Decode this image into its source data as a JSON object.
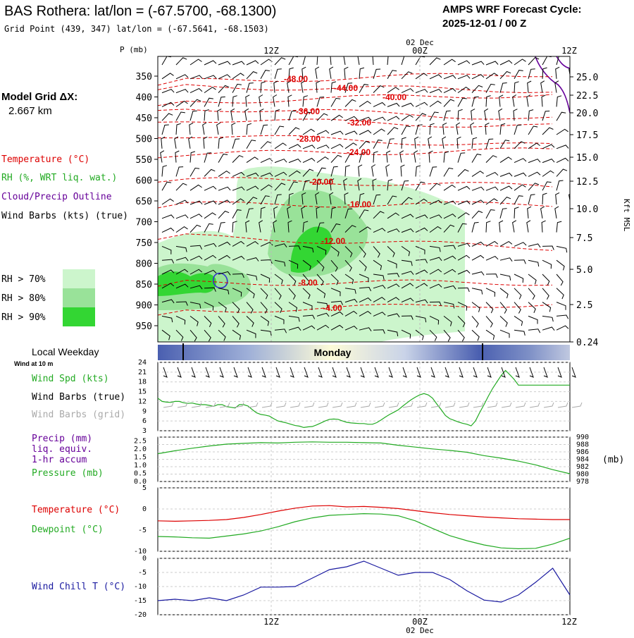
{
  "header": {
    "station": "BAS Rothera:  lat/lon = (-67.5700, -68.1300)",
    "grid_point": "Grid Point (439, 347) lat/lon = (-67.5641, -68.1503)",
    "forecast_label": "AMPS WRF Forecast Cycle:",
    "forecast_cycle": "2025-12-01 / 00  Z"
  },
  "side": {
    "model_grid_label": "Model Grid ΔX:",
    "model_grid_value": "2.667 km",
    "temperature_label": "Temperature (°C)",
    "rh_label": "RH (%, WRT liq. wat.)",
    "cloud_label": "Cloud/Precip Outline",
    "windbarbs_label": "Wind Barbs (kts) (true)",
    "rh_legend": [
      "RH > 70%",
      "RH > 80%",
      "RH > 90%"
    ],
    "local_weekday_label": "Local Weekday",
    "wind_at_label": "Wind at 10 m",
    "wind_spd_label": "Wind Spd (kts)",
    "wind_barbs_true_label": "Wind Barbs (true)",
    "wind_barbs_grid_label": "Wind Barbs (grid)",
    "precip_label": [
      "Precip (mm)",
      "liq. equiv.",
      "1-hr accum"
    ],
    "pressure_label": "Pressure (mb)",
    "temp_label2": "Temperature (°C)",
    "dewpoint_label": "Dewpoint (°C)",
    "windchill_label": "Wind Chill T (°C)"
  },
  "colors": {
    "temperature": "#dd0000",
    "rh": "#22aa22",
    "cloud": "#660099",
    "rh70": "#ccf5cc",
    "rh80": "#99e299",
    "rh90": "#33d633",
    "wind": "#000000",
    "windgrid": "#aaaaaa",
    "pressure": "#22aa22",
    "windchill": "#1a1aa0"
  },
  "time_axis": {
    "top_ticks": [
      "12Z",
      "00Z",
      "12Z"
    ],
    "date_label": "02 Dec",
    "bottom_ticks": [
      "12Z",
      "00Z",
      "12Z"
    ],
    "weekday": "Monday"
  },
  "chart_data": [
    {
      "type": "line",
      "title": "",
      "xlabel": "",
      "ylabel": "P (mb)",
      "y2label": "Kft MSL",
      "yticks": [
        "350",
        "400",
        "450",
        "500",
        "550",
        "600",
        "650",
        "700",
        "750",
        "800",
        "850",
        "900",
        "950"
      ],
      "y2ticks": [
        "25.0",
        "22.5",
        "20.0",
        "17.5",
        "15.0",
        "12.5",
        "10.0",
        "7.5",
        "5.0",
        "2.5",
        "0.24"
      ],
      "isotherm_labels": [
        "-48.00",
        "-44.00",
        "-40.00",
        "-36.00",
        "-32.00",
        "-28.00",
        "-24.00",
        "-20.00",
        "-16.00",
        "-12.00",
        "-8.00",
        "-4.00"
      ]
    },
    {
      "type": "line",
      "name": "Wind Spd (kts)",
      "ylim": [
        3,
        24
      ],
      "yticks": [
        "24",
        "21",
        "18",
        "15",
        "12",
        "9",
        "6",
        "3"
      ],
      "x_hours": [
        0,
        3,
        6,
        9,
        12,
        15,
        18,
        21,
        24,
        27,
        30,
        33,
        36,
        39,
        42,
        45,
        48,
        51,
        54,
        57,
        60,
        63,
        66,
        69,
        72,
        75,
        78,
        81,
        84,
        87,
        90,
        93,
        96,
        99,
        102,
        105,
        108,
        111,
        114,
        117,
        120,
        123,
        126,
        129,
        132,
        135,
        138,
        141,
        144,
        147,
        150,
        153,
        156,
        159,
        162,
        165,
        168,
        171,
        174,
        177,
        180,
        183,
        186,
        189,
        192,
        195,
        198,
        201,
        204,
        207,
        210,
        213,
        216,
        219,
        222,
        225,
        228,
        231,
        234,
        237,
        240,
        243,
        246,
        249,
        252,
        255,
        258,
        261,
        264,
        267,
        270,
        273,
        276,
        279,
        282,
        285,
        288
      ],
      "values": [
        13,
        12,
        11.8,
        11.7,
        12,
        12,
        11.6,
        11.4,
        11.5,
        11.2,
        11,
        11,
        10.8,
        10.5,
        11,
        11,
        10.4,
        10.2,
        10,
        11,
        11,
        10.6,
        9.5,
        8.5,
        8,
        7.8,
        7.5,
        6.7,
        6,
        5.7,
        5.4,
        5,
        4.6,
        4.4,
        4,
        4.2,
        4.3,
        4.8,
        5.4,
        6,
        6.5,
        6.6,
        6.5,
        6,
        5.6,
        5.4,
        5.3,
        5.2,
        5.2,
        5,
        5,
        5.5,
        6.3,
        7.2,
        8,
        8.7,
        9.4,
        10.5,
        11.5,
        12.5,
        13.3,
        14,
        14.4,
        14,
        13,
        11.2,
        9.5,
        7.7,
        6.7,
        6.2,
        5.7,
        5.3,
        5,
        4.5,
        6,
        8.6,
        11,
        13.6,
        16,
        18,
        20,
        21.5,
        20.2,
        18.8,
        17,
        17,
        17,
        17,
        17,
        17,
        17,
        17,
        17,
        17,
        17,
        17,
        17
      ]
    },
    {
      "type": "line",
      "name": "Pressure (mb)",
      "ylim": [
        978,
        990
      ],
      "yticks": [
        "990",
        "988",
        "986",
        "984",
        "982",
        "980",
        "978"
      ],
      "precip_yticks": [
        "2.5",
        "2.0",
        "1.5",
        "1.0",
        "0.5",
        "0.0"
      ],
      "x_hours": [
        0,
        12,
        24,
        36,
        48,
        60,
        72,
        84,
        96,
        108,
        120,
        132,
        144,
        156,
        168,
        180,
        192,
        204,
        216,
        228,
        240,
        252,
        264,
        276,
        288
      ],
      "values": [
        985.5,
        986.3,
        987,
        987.6,
        988.1,
        988.3,
        988.5,
        988.4,
        988.6,
        988.7,
        988.6,
        988.6,
        988.5,
        988.4,
        987.8,
        987.3,
        986.8,
        986.4,
        985.9,
        985,
        984.3,
        983.5,
        982.5,
        981.2,
        980.1
      ]
    },
    {
      "type": "line",
      "ylim": [
        -10,
        5
      ],
      "yticks": [
        "5",
        "0",
        "-5",
        "-10"
      ],
      "series": [
        {
          "name": "Temperature (°C)",
          "x_hours": [
            0,
            12,
            24,
            36,
            48,
            60,
            72,
            84,
            96,
            108,
            120,
            132,
            144,
            156,
            168,
            180,
            192,
            204,
            216,
            228,
            240,
            252,
            264,
            276,
            288
          ],
          "values": [
            -2.8,
            -2.9,
            -2.8,
            -2.7,
            -2.5,
            -2,
            -1.3,
            -0.5,
            0.2,
            0.7,
            0.8,
            0.5,
            0.6,
            0.4,
            0.1,
            -0.4,
            -0.9,
            -1.3,
            -1.6,
            -1.9,
            -2.1,
            -2.3,
            -2.4,
            -2.5,
            -2.5
          ]
        },
        {
          "name": "Dewpoint (°C)",
          "x_hours": [
            0,
            12,
            24,
            36,
            48,
            60,
            72,
            84,
            96,
            108,
            120,
            132,
            144,
            156,
            168,
            180,
            192,
            204,
            216,
            228,
            240,
            252,
            264,
            276,
            288
          ],
          "values": [
            -6.5,
            -6.6,
            -6.8,
            -6.9,
            -6.4,
            -5.9,
            -5.2,
            -4.2,
            -3,
            -2.1,
            -1.5,
            -1.3,
            -1.1,
            -1.2,
            -1.6,
            -2.8,
            -4.6,
            -6.3,
            -7.5,
            -8.5,
            -9.2,
            -9.4,
            -9.3,
            -8.3,
            -6.9
          ]
        }
      ]
    },
    {
      "type": "line",
      "name": "Wind Chill T (°C)",
      "ylim": [
        -20,
        0
      ],
      "yticks": [
        "0",
        "-5",
        "-10",
        "-15",
        "-20"
      ],
      "x_hours": [
        0,
        12,
        24,
        36,
        48,
        60,
        72,
        84,
        96,
        108,
        120,
        132,
        144,
        156,
        168,
        180,
        192,
        204,
        216,
        228,
        240,
        252,
        264,
        276,
        288
      ],
      "values": [
        -15,
        -14.5,
        -15,
        -14,
        -15,
        -13,
        -10.2,
        -10.2,
        -10,
        -7,
        -4,
        -3,
        -1,
        -3.5,
        -6,
        -5,
        -5,
        -7.5,
        -11.5,
        -14.8,
        -15.5,
        -13,
        -8.5,
        -3.5,
        -13
      ]
    }
  ]
}
